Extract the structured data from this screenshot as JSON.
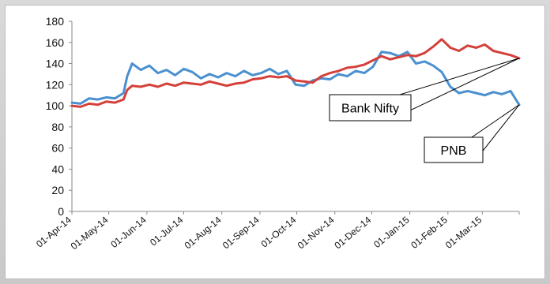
{
  "chart_data": {
    "type": "line",
    "title": "",
    "xlabel": "",
    "ylabel": "",
    "ylim": [
      0,
      180
    ],
    "yticks": [
      0,
      20,
      40,
      60,
      80,
      100,
      120,
      140,
      160,
      180
    ],
    "x_tick_labels": [
      "01-Apr-14",
      "01-May-14",
      "01-Jun-14",
      "01-Jul-14",
      "01-Aug-14",
      "01-Sep-14",
      "01-Oct-14",
      "01-Nov-14",
      "01-Dec-14",
      "01-Jan-15",
      "01-Feb-15",
      "01-Mar-15"
    ],
    "x_start": "2014-04-01",
    "x_end": "2015-03-31",
    "grid": false,
    "colors": {
      "Bank Nifty": "#d4403a",
      "PNB": "#4a90d0"
    },
    "series": [
      {
        "name": "Bank Nifty",
        "x": [
          "2014-04-01",
          "2014-04-08",
          "2014-04-15",
          "2014-04-22",
          "2014-04-29",
          "2014-05-06",
          "2014-05-13",
          "2014-05-16",
          "2014-05-20",
          "2014-05-27",
          "2014-06-03",
          "2014-06-10",
          "2014-06-17",
          "2014-06-24",
          "2014-07-01",
          "2014-07-08",
          "2014-07-15",
          "2014-07-22",
          "2014-07-29",
          "2014-08-05",
          "2014-08-12",
          "2014-08-19",
          "2014-08-26",
          "2014-09-02",
          "2014-09-09",
          "2014-09-16",
          "2014-09-23",
          "2014-09-30",
          "2014-10-07",
          "2014-10-14",
          "2014-10-21",
          "2014-10-28",
          "2014-11-04",
          "2014-11-11",
          "2014-11-18",
          "2014-11-25",
          "2014-12-02",
          "2014-12-09",
          "2014-12-16",
          "2014-12-23",
          "2014-12-30",
          "2015-01-06",
          "2015-01-13",
          "2015-01-20",
          "2015-01-27",
          "2015-02-03",
          "2015-02-10",
          "2015-02-17",
          "2015-02-24",
          "2015-03-03",
          "2015-03-10",
          "2015-03-17",
          "2015-03-24",
          "2015-03-31"
        ],
        "values": [
          100,
          99,
          102,
          101,
          104,
          103,
          106,
          115,
          119,
          118,
          120,
          118,
          121,
          119,
          122,
          121,
          120,
          123,
          121,
          119,
          121,
          122,
          125,
          126,
          128,
          127,
          128,
          124,
          123,
          122,
          128,
          131,
          133,
          136,
          137,
          139,
          143,
          147,
          144,
          146,
          148,
          147,
          150,
          156,
          163,
          155,
          152,
          157,
          155,
          158,
          152,
          150,
          148,
          145
        ]
      },
      {
        "name": "PNB",
        "x": [
          "2014-04-01",
          "2014-04-08",
          "2014-04-15",
          "2014-04-22",
          "2014-04-29",
          "2014-05-06",
          "2014-05-13",
          "2014-05-16",
          "2014-05-20",
          "2014-05-27",
          "2014-06-03",
          "2014-06-10",
          "2014-06-17",
          "2014-06-24",
          "2014-07-01",
          "2014-07-08",
          "2014-07-15",
          "2014-07-22",
          "2014-07-29",
          "2014-08-05",
          "2014-08-12",
          "2014-08-19",
          "2014-08-26",
          "2014-09-02",
          "2014-09-09",
          "2014-09-16",
          "2014-09-23",
          "2014-09-30",
          "2014-10-07",
          "2014-10-14",
          "2014-10-21",
          "2014-10-28",
          "2014-11-04",
          "2014-11-11",
          "2014-11-18",
          "2014-11-25",
          "2014-12-02",
          "2014-12-09",
          "2014-12-16",
          "2014-12-23",
          "2014-12-30",
          "2015-01-06",
          "2015-01-13",
          "2015-01-20",
          "2015-01-27",
          "2015-02-03",
          "2015-02-10",
          "2015-02-17",
          "2015-02-24",
          "2015-03-03",
          "2015-03-10",
          "2015-03-17",
          "2015-03-24",
          "2015-03-31"
        ],
        "values": [
          103,
          102,
          107,
          106,
          108,
          107,
          112,
          128,
          140,
          134,
          138,
          131,
          134,
          129,
          135,
          132,
          126,
          130,
          127,
          131,
          128,
          133,
          129,
          131,
          135,
          130,
          133,
          120,
          119,
          124,
          126,
          125,
          130,
          128,
          133,
          131,
          137,
          151,
          150,
          147,
          151,
          140,
          142,
          138,
          132,
          118,
          112,
          114,
          112,
          110,
          113,
          111,
          114,
          101
        ]
      }
    ],
    "annotations": [
      {
        "text": "Bank Nifty",
        "target_series": "Bank Nifty",
        "target_date": "2015-03-31"
      },
      {
        "text": "PNB",
        "target_series": "PNB",
        "target_date": "2015-03-31"
      }
    ]
  }
}
